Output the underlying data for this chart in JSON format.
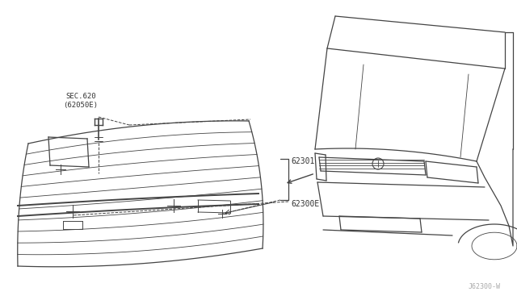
{
  "background_color": "#ffffff",
  "line_color": "#444444",
  "text_color": "#333333",
  "watermark": "J62300-W",
  "label_sec620": "SEC.620\n(62050E)",
  "label_62301": "62301",
  "label_62300E": "62300E",
  "figsize": [
    6.4,
    3.72
  ],
  "dpi": 100
}
